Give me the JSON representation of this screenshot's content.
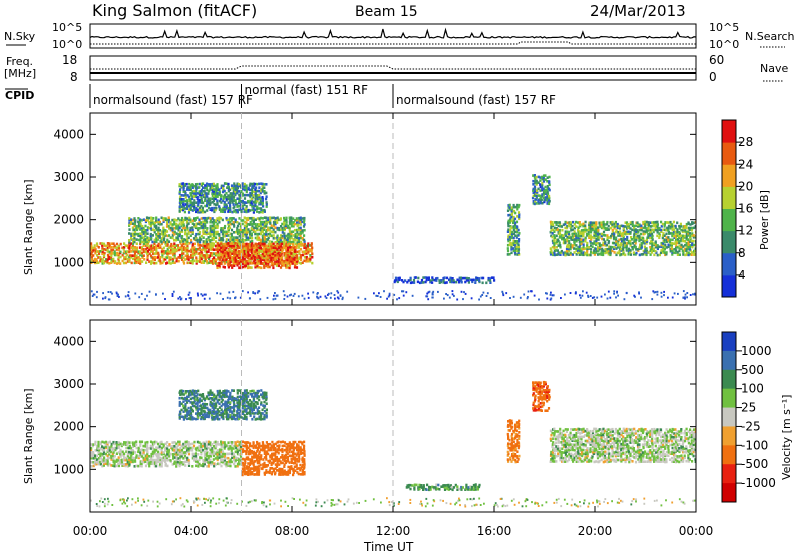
{
  "header": {
    "station": "King Salmon (fitACF)",
    "beam": "Beam 15",
    "date": "24/Mar/2013"
  },
  "noise_panel": {
    "left_label": "N.Sky",
    "right_label": "N.Search",
    "left_ticks": [
      "10^5",
      "10^0"
    ],
    "right_ticks": [
      "10^5",
      "10^0"
    ]
  },
  "freq_panel": {
    "left_label_line1": "Freq.",
    "left_label_line2": "[MHz]",
    "right_label": "Nave",
    "left_ticks": [
      "18",
      "8"
    ],
    "right_ticks": [
      "60",
      "0"
    ]
  },
  "cpid_panel": {
    "label": "CPID",
    "segments": [
      {
        "text": "normalsound (fast) 157 RF",
        "start_h": 0.0,
        "end_h": 6.0
      },
      {
        "text": "normal (fast) 151 RF",
        "start_h": 6.0,
        "end_h": 12.0
      },
      {
        "text": "normalsound (fast) 157 RF",
        "start_h": 12.0,
        "end_h": 24.0
      }
    ]
  },
  "power_panel": {
    "ylabel": "Slant Range [km]",
    "cbar_label": "Power [dB]",
    "cbar_ticks": [
      "4",
      "8",
      "12",
      "16",
      "20",
      "24",
      "28"
    ],
    "cbar_colors": [
      "#1530d8",
      "#2a5fc8",
      "#3a8a6a",
      "#4fb34a",
      "#b7d130",
      "#f0a020",
      "#e85a10",
      "#e01010"
    ]
  },
  "velocity_panel": {
    "ylabel": "Slant Range [km]",
    "cbar_label": "Velocity [m s⁻¹]",
    "cbar_ticks": [
      "1000",
      "500",
      "100",
      "25",
      "-25",
      "-100",
      "-500",
      "-1000"
    ],
    "cbar_colors": [
      "#1a40c0",
      "#3a70b0",
      "#3b8a50",
      "#70c040",
      "#c8c8c0",
      "#f0a030",
      "#f07010",
      "#e82010",
      "#d00000"
    ]
  },
  "x_axis": {
    "label": "Time UT",
    "ticks": [
      "00:00",
      "04:00",
      "08:00",
      "12:00",
      "16:00",
      "20:00",
      "00:00"
    ]
  },
  "chart_data": [
    {
      "type": "heatmap",
      "title": "Power [dB]",
      "xlabel": "Time UT",
      "ylabel": "Slant Range [km]",
      "x_range_hours": [
        0,
        24
      ],
      "y_range_km": [
        0,
        4500
      ],
      "y_ticks": [
        1000,
        2000,
        3000,
        4000
      ],
      "color_range": [
        0,
        32
      ],
      "dashed_lines_hours": [
        6,
        12
      ],
      "echo_regions": [
        {
          "t_start": 0.0,
          "t_end": 8.8,
          "r_low": 1000,
          "r_high": 1500,
          "power": 22
        },
        {
          "t_start": 1.5,
          "t_end": 8.5,
          "r_low": 1500,
          "r_high": 2100,
          "power": 14
        },
        {
          "t_start": 3.5,
          "t_end": 7.0,
          "r_low": 2200,
          "r_high": 2900,
          "power": 10
        },
        {
          "t_start": 5.0,
          "t_end": 8.2,
          "r_low": 900,
          "r_high": 1500,
          "power": 26
        },
        {
          "t_start": 12.0,
          "t_end": 16.0,
          "r_low": 550,
          "r_high": 700,
          "power": 4
        },
        {
          "t_start": 16.5,
          "t_end": 17.0,
          "r_low": 1200,
          "r_high": 2400,
          "power": 12
        },
        {
          "t_start": 17.5,
          "t_end": 18.2,
          "r_low": 2400,
          "r_high": 3100,
          "power": 10
        },
        {
          "t_start": 18.2,
          "t_end": 24.0,
          "r_low": 1200,
          "r_high": 2000,
          "power": 14
        }
      ]
    },
    {
      "type": "heatmap",
      "title": "Velocity [m s⁻¹]",
      "xlabel": "Time UT",
      "ylabel": "Slant Range [km]",
      "x_range_hours": [
        0,
        24
      ],
      "y_range_km": [
        0,
        4500
      ],
      "y_ticks": [
        1000,
        2000,
        3000,
        4000
      ],
      "dashed_lines_hours": [
        6,
        12
      ],
      "echo_regions": [
        {
          "t_start": 0.0,
          "t_end": 6.0,
          "r_low": 1100,
          "r_high": 1700,
          "velocity": 0
        },
        {
          "t_start": 6.0,
          "t_end": 8.5,
          "r_low": 900,
          "r_high": 1700,
          "velocity": -300
        },
        {
          "t_start": 3.5,
          "t_end": 7.0,
          "r_low": 2200,
          "r_high": 2900,
          "velocity": 100
        },
        {
          "t_start": 12.5,
          "t_end": 15.5,
          "r_low": 550,
          "r_high": 700,
          "velocity": 50
        },
        {
          "t_start": 16.5,
          "t_end": 17.0,
          "r_low": 1200,
          "r_high": 2200,
          "velocity": -150
        },
        {
          "t_start": 17.5,
          "t_end": 18.2,
          "r_low": 2400,
          "r_high": 3100,
          "velocity": -400
        },
        {
          "t_start": 18.2,
          "t_end": 24.0,
          "r_low": 1200,
          "r_high": 2000,
          "velocity": 0
        }
      ]
    }
  ]
}
